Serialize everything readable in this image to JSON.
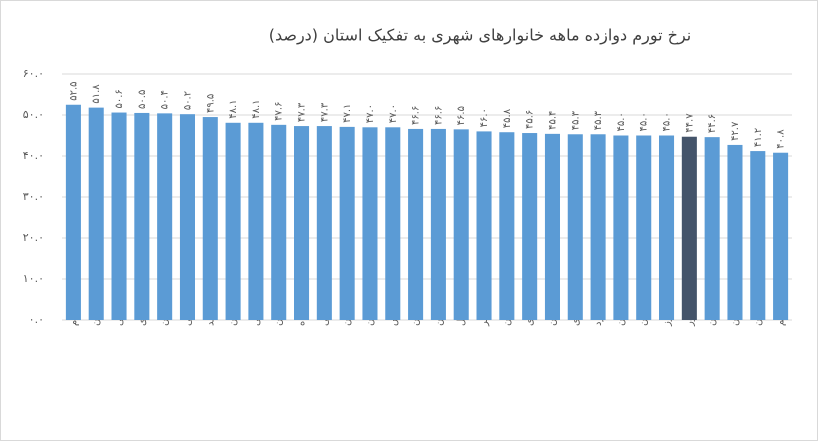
{
  "chart_data": {
    "type": "bar",
    "title": "نرخ تورم دوازده ماهه خانوارهای شهری به تفکیک استان (درصد)",
    "categories": [
      "ایلام",
      "زنجان",
      "خراسان شمالی",
      "چهارمحال وبختیاری",
      "کردستان",
      "آذربایجان شرقی",
      "کهگیلویه وبویراحمد",
      "لرستان",
      "آذربایجان غربی",
      "گلستان",
      "کرمانشاه",
      "خراسان جنوبی",
      "کرمان",
      "خوزستان",
      "فارس",
      "سیستان وبلوچستان",
      "قزوین",
      "اردبیل",
      "بوشهر",
      "مازندران",
      "خراسان رضوی",
      "همدان",
      "مرکزی",
      "یزد",
      "اصفهان",
      "هرمزگان",
      "البرز",
      "کل کشور",
      "گیلان",
      "سمنان",
      "تهران",
      "قم"
    ],
    "values": [
      52.5,
      51.8,
      50.6,
      50.5,
      50.4,
      50.2,
      49.5,
      48.1,
      48.1,
      47.6,
      47.3,
      47.3,
      47.1,
      47.0,
      47.0,
      46.6,
      46.6,
      46.5,
      46.0,
      45.8,
      45.6,
      45.4,
      45.3,
      45.3,
      45.0,
      45.0,
      45.0,
      44.7,
      44.6,
      42.7,
      41.2,
      40.8
    ],
    "value_labels": [
      "۵۲.۵",
      "۵۱.۸",
      "۵۰.۶",
      "۵۰.۵",
      "۵۰.۴",
      "۵۰.۲",
      "۴۹.۵",
      "۴۸.۱",
      "۴۸.۱",
      "۴۷.۶",
      "۴۷.۳",
      "۴۷.۳",
      "۴۷.۱",
      "۴۷.۰",
      "۴۷.۰",
      "۴۶.۶",
      "۴۶.۶",
      "۴۶.۵",
      "۴۶.۰",
      "۴۵.۸",
      "۴۵.۶",
      "۴۵.۴",
      "۴۵.۳",
      "۴۵.۳",
      "۴۵.۰",
      "۴۵.۰",
      "۴۵.۰",
      "۴۴.۷",
      "۴۴.۶",
      "۴۲.۷",
      "۴۱.۲",
      "۴۰.۸"
    ],
    "colors": [
      "#5b9bd5",
      "#5b9bd5",
      "#5b9bd5",
      "#5b9bd5",
      "#5b9bd5",
      "#5b9bd5",
      "#5b9bd5",
      "#5b9bd5",
      "#5b9bd5",
      "#5b9bd5",
      "#5b9bd5",
      "#5b9bd5",
      "#5b9bd5",
      "#5b9bd5",
      "#5b9bd5",
      "#5b9bd5",
      "#5b9bd5",
      "#5b9bd5",
      "#5b9bd5",
      "#5b9bd5",
      "#5b9bd5",
      "#5b9bd5",
      "#5b9bd5",
      "#5b9bd5",
      "#5b9bd5",
      "#5b9bd5",
      "#5b9bd5",
      "#44546a",
      "#5b9bd5",
      "#5b9bd5",
      "#5b9bd5",
      "#5b9bd5"
    ],
    "ylim": [
      0,
      60
    ],
    "yticks": [
      {
        "value": 0,
        "label": "۰.۰"
      },
      {
        "value": 10,
        "label": "۱۰.۰"
      },
      {
        "value": 20,
        "label": "۲۰.۰"
      },
      {
        "value": 30,
        "label": "۳۰.۰"
      },
      {
        "value": 40,
        "label": "۴۰.۰"
      },
      {
        "value": 50,
        "label": "۵۰.۰"
      },
      {
        "value": 60,
        "label": "۶۰.۰"
      }
    ],
    "grid": true
  }
}
